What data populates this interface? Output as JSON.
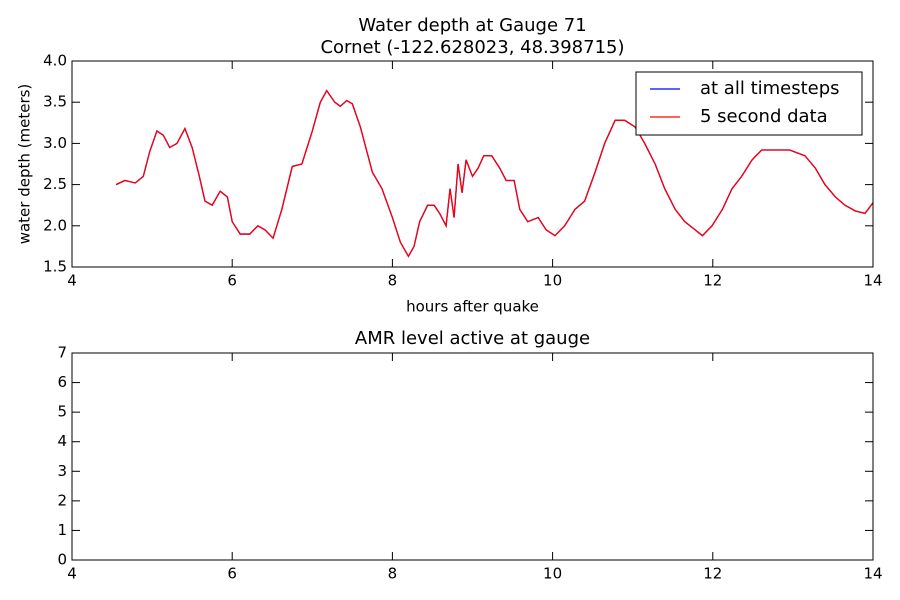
{
  "chart_data": [
    {
      "type": "line",
      "title": "Water depth at Gauge 71",
      "subtitle": "Cornet  (-122.628023, 48.398715)",
      "x_label": "hours after quake",
      "y_label": "water depth (meters)",
      "xlim": [
        4,
        14
      ],
      "xticks": [
        4,
        6,
        8,
        10,
        12,
        14
      ],
      "ylim": [
        1.5,
        4.0
      ],
      "yticks": [
        1.5,
        {
          "value": 2.0,
          "label": "2.0"
        },
        2.5,
        {
          "value": 3.0,
          "label": "3.0"
        },
        3.5,
        {
          "value": 4.0,
          "label": "4.0"
        }
      ],
      "legend": "upper right",
      "x": [
        4.55,
        4.66,
        4.79,
        4.89,
        4.97,
        5.06,
        5.14,
        5.22,
        5.31,
        5.41,
        5.5,
        5.59,
        5.66,
        5.75,
        5.85,
        5.94,
        6.0,
        6.1,
        6.22,
        6.32,
        6.41,
        6.51,
        6.62,
        6.75,
        6.87,
        7.0,
        7.1,
        7.18,
        7.28,
        7.35,
        7.43,
        7.5,
        7.6,
        7.75,
        7.87,
        8.0,
        8.1,
        8.2,
        8.27,
        8.34,
        8.44,
        8.52,
        8.59,
        8.67,
        8.72,
        8.77,
        8.82,
        8.87,
        8.92,
        9.0,
        9.07,
        9.14,
        9.24,
        9.34,
        9.42,
        9.52,
        9.59,
        9.69,
        9.82,
        9.92,
        10.03,
        10.15,
        10.28,
        10.4,
        10.53,
        10.65,
        10.78,
        10.9,
        11.03,
        11.15,
        11.28,
        11.4,
        11.53,
        11.65,
        11.78,
        11.87,
        11.99,
        12.12,
        12.24,
        12.36,
        12.49,
        12.61,
        12.78,
        12.96,
        13.15,
        13.28,
        13.4,
        13.53,
        13.65,
        13.78,
        13.9,
        14.0
      ],
      "series": [
        {
          "name": "at all timesteps",
          "color": "#0000ff",
          "values": [
            2.5,
            2.55,
            2.52,
            2.6,
            2.9,
            3.15,
            3.1,
            2.95,
            3.0,
            3.18,
            2.95,
            2.6,
            2.3,
            2.25,
            2.42,
            2.35,
            2.05,
            1.9,
            1.9,
            2.0,
            1.95,
            1.85,
            2.2,
            2.72,
            2.75,
            3.15,
            3.5,
            3.64,
            3.5,
            3.45,
            3.52,
            3.48,
            3.2,
            2.65,
            2.45,
            2.1,
            1.8,
            1.63,
            1.75,
            2.05,
            2.25,
            2.25,
            2.15,
            2.0,
            2.45,
            2.1,
            2.75,
            2.4,
            2.8,
            2.6,
            2.7,
            2.85,
            2.85,
            2.7,
            2.55,
            2.55,
            2.2,
            2.05,
            2.1,
            1.95,
            1.88,
            2.0,
            2.2,
            2.3,
            2.65,
            3.0,
            3.28,
            3.28,
            3.2,
            3.0,
            2.75,
            2.45,
            2.2,
            2.05,
            1.95,
            1.88,
            2.0,
            2.2,
            2.45,
            2.6,
            2.8,
            2.92,
            2.92,
            2.92,
            2.85,
            2.7,
            2.5,
            2.35,
            2.25,
            2.18,
            2.15,
            2.28
          ]
        },
        {
          "name": "5 second data",
          "color": "#ff0000",
          "values": [
            2.5,
            2.55,
            2.52,
            2.6,
            2.9,
            3.15,
            3.1,
            2.95,
            3.0,
            3.18,
            2.95,
            2.6,
            2.3,
            2.25,
            2.42,
            2.35,
            2.05,
            1.9,
            1.9,
            2.0,
            1.95,
            1.85,
            2.2,
            2.72,
            2.75,
            3.15,
            3.5,
            3.64,
            3.5,
            3.45,
            3.52,
            3.48,
            3.2,
            2.65,
            2.45,
            2.1,
            1.8,
            1.63,
            1.75,
            2.05,
            2.25,
            2.25,
            2.15,
            2.0,
            2.45,
            2.1,
            2.75,
            2.4,
            2.8,
            2.6,
            2.7,
            2.85,
            2.85,
            2.7,
            2.55,
            2.55,
            2.2,
            2.05,
            2.1,
            1.95,
            1.88,
            2.0,
            2.2,
            2.3,
            2.65,
            3.0,
            3.28,
            3.28,
            3.2,
            3.0,
            2.75,
            2.45,
            2.2,
            2.05,
            1.95,
            1.88,
            2.0,
            2.2,
            2.45,
            2.6,
            2.8,
            2.92,
            2.92,
            2.92,
            2.85,
            2.7,
            2.5,
            2.35,
            2.25,
            2.18,
            2.15,
            2.28
          ]
        }
      ]
    },
    {
      "type": "line",
      "title": "AMR level active at gauge",
      "xlim": [
        4,
        14
      ],
      "xticks": [
        4,
        6,
        8,
        10,
        12,
        14
      ],
      "ylim": [
        0,
        7
      ],
      "yticks": [
        0,
        1,
        2,
        3,
        4,
        5,
        6,
        7
      ]
    }
  ]
}
